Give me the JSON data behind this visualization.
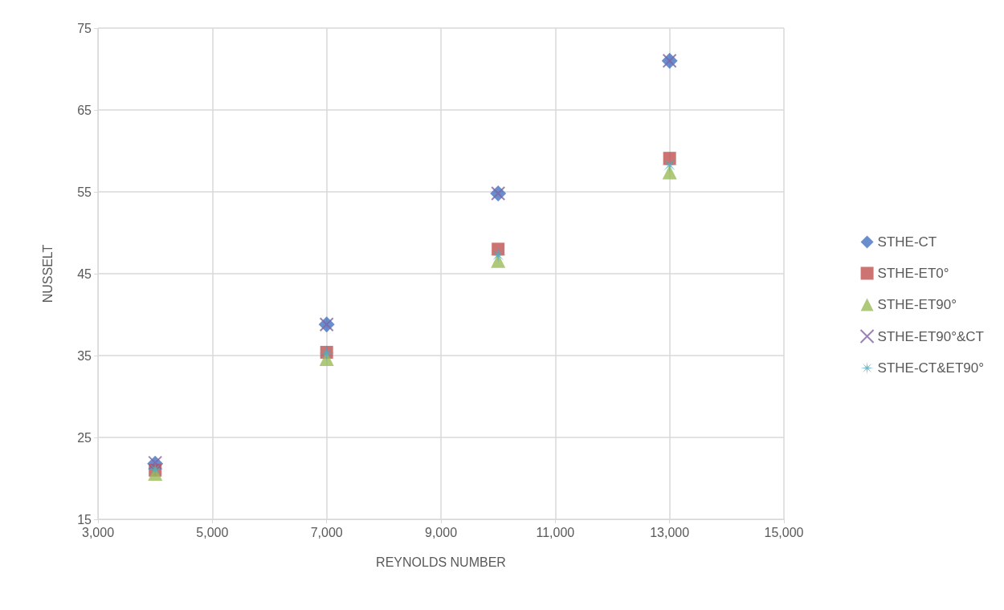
{
  "chart_data": {
    "type": "scatter",
    "xlabel": "REYNOLDS NUMBER",
    "ylabel": "NUSSELT",
    "x": [
      4000,
      7000,
      10000,
      13000
    ],
    "xlim": [
      3000,
      15000
    ],
    "xticks": [
      {
        "value": 3000,
        "label": "3,000"
      },
      {
        "value": 5000,
        "label": "5,000"
      },
      {
        "value": 7000,
        "label": "7,000"
      },
      {
        "value": 9000,
        "label": "9,000"
      },
      {
        "value": 11000,
        "label": "11,000"
      },
      {
        "value": 13000,
        "label": "13,000"
      },
      {
        "value": 15000,
        "label": "15,000"
      }
    ],
    "ylim": [
      15,
      75
    ],
    "yticks": [
      15,
      25,
      35,
      45,
      55,
      65,
      75
    ],
    "grid": true,
    "legend": "right",
    "series": [
      {
        "name": "STHE-CT",
        "color": "#4472c4",
        "marker": "diamond",
        "values": [
          21.8,
          38.8,
          54.8,
          71.0
        ]
      },
      {
        "name": "STHE-ET0°",
        "color": "#c0504d",
        "marker": "square",
        "values": [
          21.0,
          35.4,
          48.0,
          59.1
        ]
      },
      {
        "name": "STHE-ET90°",
        "color": "#9bbb59",
        "marker": "triangle",
        "values": [
          20.6,
          34.6,
          46.6,
          57.4
        ]
      },
      {
        "name": "STHE-ET90°&CT",
        "color": "#8064a2",
        "marker": "cross",
        "values": [
          21.9,
          38.8,
          54.8,
          71.0
        ]
      },
      {
        "name": "STHE-CT&ET90°",
        "color": "#4bacc6",
        "marker": "star",
        "values": [
          21.1,
          35.3,
          47.3,
          58.3
        ]
      }
    ]
  }
}
